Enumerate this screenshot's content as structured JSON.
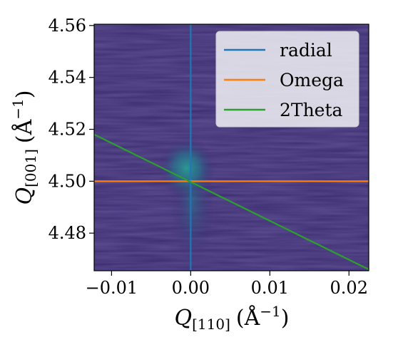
{
  "chart_data": {
    "type": "heatmap",
    "title": "",
    "xlabel": {
      "symbol": "Q",
      "subscript": "[110]",
      "unit": "(Å",
      "unit_exp": "−1",
      "close": ")"
    },
    "ylabel": {
      "symbol": "Q",
      "subscript": "[001]",
      "unit": "(Å",
      "unit_exp": "−1",
      "close": ")"
    },
    "xlim": [
      -0.0122,
      0.0225
    ],
    "ylim": [
      4.4655,
      4.5605
    ],
    "x_ticks": [
      {
        "value": -0.01,
        "label": "−0.01"
      },
      {
        "value": 0.0,
        "label": "0.00"
      },
      {
        "value": 0.01,
        "label": "0.01"
      },
      {
        "value": 0.02,
        "label": "0.02"
      }
    ],
    "y_ticks": [
      {
        "value": 4.48,
        "label": "4.48"
      },
      {
        "value": 4.5,
        "label": "4.50"
      },
      {
        "value": 4.52,
        "label": "4.52"
      },
      {
        "value": 4.54,
        "label": "4.54"
      },
      {
        "value": 4.56,
        "label": "4.56"
      }
    ],
    "grid": false,
    "legend_position": "top-right",
    "colormap": {
      "background": "#3b2a6e",
      "peak": "#2a8c92"
    },
    "peak": {
      "x": -0.0005,
      "y": 4.505
    },
    "series": [
      {
        "name": "radial",
        "color": "#1f77b4",
        "x": [
          0.0,
          0.0
        ],
        "y": [
          4.4655,
          4.5605
        ]
      },
      {
        "name": "Omega",
        "color": "#ff7f0e",
        "x": [
          -0.0122,
          0.0225
        ],
        "y": [
          4.5,
          4.5
        ]
      },
      {
        "name": "2Theta",
        "color": "#2ca02c",
        "x": [
          -0.0122,
          0.0225
        ],
        "y": [
          4.518,
          4.466
        ]
      }
    ]
  }
}
